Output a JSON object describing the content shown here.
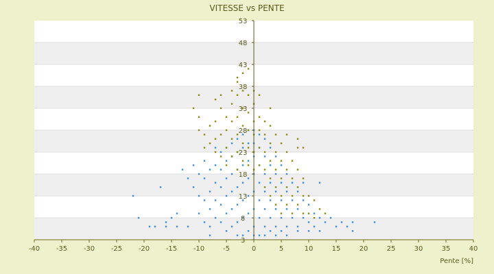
{
  "chart_data": {
    "type": "scatter",
    "title": "VITESSE vs PENTE",
    "xlabel": "Pente [%]",
    "ylabel": "",
    "xlim": [
      -40,
      40
    ],
    "ylim": [
      3,
      53
    ],
    "x_ticks": [
      "-40",
      "-35",
      "-30",
      "-25",
      "-20",
      "-15",
      "-10",
      "-5",
      "0",
      "5",
      "10",
      "15",
      "20",
      "25",
      "30",
      "35",
      "40"
    ],
    "y_ticks": [
      "53",
      "48",
      "43",
      "38",
      "33",
      "28",
      "23",
      "18",
      "13",
      "8",
      "3"
    ],
    "grid": true,
    "legend": "none",
    "series": [
      {
        "color": "#3b8fd8",
        "values": [
          [
            -22,
            13
          ],
          [
            -21,
            8
          ],
          [
            -19,
            6
          ],
          [
            -18,
            6
          ],
          [
            -17,
            15
          ],
          [
            -16,
            7
          ],
          [
            -15,
            8
          ],
          [
            -14,
            9
          ],
          [
            -13,
            19
          ],
          [
            -12,
            17
          ],
          [
            -11,
            20
          ],
          [
            -11,
            15
          ],
          [
            -10,
            18
          ],
          [
            -10,
            13
          ],
          [
            -10,
            9
          ],
          [
            -9,
            21
          ],
          [
            -9,
            17
          ],
          [
            -9,
            12
          ],
          [
            -9,
            7
          ],
          [
            -8,
            19
          ],
          [
            -8,
            14
          ],
          [
            -8,
            10
          ],
          [
            -8,
            6
          ],
          [
            -7,
            20
          ],
          [
            -7,
            16
          ],
          [
            -7,
            12
          ],
          [
            -7,
            8
          ],
          [
            -6,
            23
          ],
          [
            -6,
            19
          ],
          [
            -6,
            15
          ],
          [
            -6,
            11
          ],
          [
            -6,
            7
          ],
          [
            -5,
            24
          ],
          [
            -5,
            21
          ],
          [
            -5,
            17
          ],
          [
            -5,
            13
          ],
          [
            -5,
            9
          ],
          [
            -5,
            5
          ],
          [
            -4,
            25
          ],
          [
            -4,
            22
          ],
          [
            -4,
            18
          ],
          [
            -4,
            14
          ],
          [
            -4,
            10
          ],
          [
            -4,
            6
          ],
          [
            -3,
            26
          ],
          [
            -3,
            23
          ],
          [
            -3,
            19
          ],
          [
            -3,
            15
          ],
          [
            -3,
            11
          ],
          [
            -3,
            7
          ],
          [
            -2,
            27
          ],
          [
            -2,
            24
          ],
          [
            -2,
            20
          ],
          [
            -2,
            16
          ],
          [
            -2,
            12
          ],
          [
            -2,
            8
          ],
          [
            -2,
            4
          ],
          [
            -1,
            28
          ],
          [
            -1,
            25
          ],
          [
            -1,
            21
          ],
          [
            -1,
            17
          ],
          [
            -1,
            13
          ],
          [
            -1,
            9
          ],
          [
            -1,
            5
          ],
          [
            0,
            28
          ],
          [
            0,
            25
          ],
          [
            0,
            22
          ],
          [
            0,
            18
          ],
          [
            0,
            14
          ],
          [
            0,
            10
          ],
          [
            0,
            6
          ],
          [
            1,
            27
          ],
          [
            1,
            24
          ],
          [
            1,
            20
          ],
          [
            1,
            16
          ],
          [
            1,
            12
          ],
          [
            1,
            8
          ],
          [
            1,
            4
          ],
          [
            2,
            26
          ],
          [
            2,
            22
          ],
          [
            2,
            18
          ],
          [
            2,
            14
          ],
          [
            2,
            10
          ],
          [
            2,
            6
          ],
          [
            3,
            24
          ],
          [
            3,
            20
          ],
          [
            3,
            16
          ],
          [
            3,
            12
          ],
          [
            3,
            8
          ],
          [
            3,
            5
          ],
          [
            4,
            22
          ],
          [
            4,
            18
          ],
          [
            4,
            14
          ],
          [
            4,
            10
          ],
          [
            4,
            6
          ],
          [
            5,
            20
          ],
          [
            5,
            16
          ],
          [
            5,
            12
          ],
          [
            5,
            8
          ],
          [
            5,
            5
          ],
          [
            6,
            18
          ],
          [
            6,
            14
          ],
          [
            6,
            10
          ],
          [
            6,
            6
          ],
          [
            7,
            16
          ],
          [
            7,
            12
          ],
          [
            7,
            8
          ],
          [
            8,
            14
          ],
          [
            8,
            10
          ],
          [
            8,
            6
          ],
          [
            9,
            12
          ],
          [
            9,
            8
          ],
          [
            10,
            11
          ],
          [
            10,
            7
          ],
          [
            11,
            9
          ],
          [
            11,
            6
          ],
          [
            12,
            8
          ],
          [
            12,
            5
          ],
          [
            13,
            7
          ],
          [
            14,
            8
          ],
          [
            15,
            6
          ],
          [
            16,
            7
          ],
          [
            17,
            6
          ],
          [
            18,
            5
          ],
          [
            18,
            7
          ],
          [
            22,
            7
          ],
          [
            -12,
            6
          ],
          [
            -14,
            6
          ],
          [
            -16,
            6
          ],
          [
            12,
            16
          ],
          [
            9,
            16
          ],
          [
            -7,
            24
          ],
          [
            -3,
            4
          ],
          [
            0,
            4
          ],
          [
            2,
            4
          ],
          [
            4,
            4
          ],
          [
            6,
            4
          ],
          [
            8,
            5
          ],
          [
            10,
            5
          ],
          [
            -8,
            4
          ]
        ]
      },
      {
        "color": "#8a8a10",
        "values": [
          [
            -11,
            33
          ],
          [
            -10,
            36
          ],
          [
            -10,
            28
          ],
          [
            -9,
            27
          ],
          [
            -9,
            24
          ],
          [
            -8,
            29
          ],
          [
            -8,
            25
          ],
          [
            -7,
            26
          ],
          [
            -7,
            23
          ],
          [
            -7,
            35
          ],
          [
            -6,
            33
          ],
          [
            -6,
            27
          ],
          [
            -6,
            22
          ],
          [
            -5,
            31
          ],
          [
            -5,
            28
          ],
          [
            -5,
            24
          ],
          [
            -5,
            20
          ],
          [
            -4,
            34
          ],
          [
            -4,
            30
          ],
          [
            -4,
            26
          ],
          [
            -4,
            22
          ],
          [
            -3,
            39
          ],
          [
            -3,
            36
          ],
          [
            -3,
            31
          ],
          [
            -3,
            27
          ],
          [
            -3,
            23
          ],
          [
            -3,
            19
          ],
          [
            -2,
            41
          ],
          [
            -2,
            37
          ],
          [
            -2,
            33
          ],
          [
            -2,
            29
          ],
          [
            -2,
            25
          ],
          [
            -2,
            21
          ],
          [
            -1,
            36
          ],
          [
            -1,
            32
          ],
          [
            -1,
            28
          ],
          [
            -1,
            24
          ],
          [
            -1,
            20
          ],
          [
            0,
            34
          ],
          [
            0,
            30
          ],
          [
            0,
            27
          ],
          [
            0,
            23
          ],
          [
            0,
            19
          ],
          [
            1,
            31
          ],
          [
            1,
            28
          ],
          [
            1,
            24
          ],
          [
            1,
            20
          ],
          [
            2,
            30
          ],
          [
            2,
            27
          ],
          [
            2,
            23
          ],
          [
            2,
            19
          ],
          [
            2,
            15
          ],
          [
            3,
            29
          ],
          [
            3,
            25
          ],
          [
            3,
            21
          ],
          [
            3,
            17
          ],
          [
            3,
            13
          ],
          [
            4,
            27
          ],
          [
            4,
            23
          ],
          [
            4,
            19
          ],
          [
            4,
            15
          ],
          [
            4,
            11
          ],
          [
            5,
            25
          ],
          [
            5,
            21
          ],
          [
            5,
            17
          ],
          [
            5,
            13
          ],
          [
            5,
            9
          ],
          [
            6,
            23
          ],
          [
            6,
            19
          ],
          [
            6,
            15
          ],
          [
            6,
            11
          ],
          [
            7,
            21
          ],
          [
            7,
            17
          ],
          [
            7,
            13
          ],
          [
            7,
            9
          ],
          [
            8,
            19
          ],
          [
            8,
            15
          ],
          [
            8,
            11
          ],
          [
            9,
            17
          ],
          [
            9,
            13
          ],
          [
            9,
            9
          ],
          [
            10,
            13
          ],
          [
            10,
            9
          ],
          [
            11,
            12
          ],
          [
            11,
            8
          ],
          [
            12,
            10
          ],
          [
            13,
            9
          ],
          [
            -6,
            36
          ],
          [
            -7,
            30
          ],
          [
            0,
            37
          ],
          [
            1,
            36
          ],
          [
            3,
            33
          ],
          [
            8,
            26
          ],
          [
            8,
            24
          ],
          [
            -1,
            42
          ],
          [
            -3,
            40
          ],
          [
            -10,
            31
          ],
          [
            -4,
            37
          ],
          [
            6,
            27
          ],
          [
            9,
            24
          ]
        ]
      }
    ]
  }
}
